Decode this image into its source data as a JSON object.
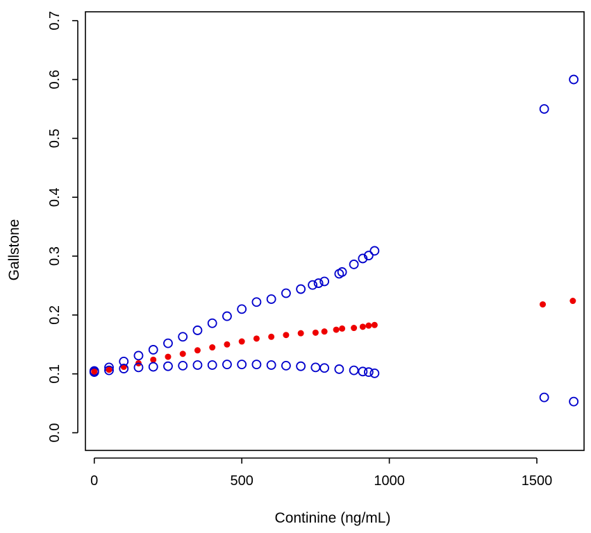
{
  "chart_data": {
    "type": "scatter",
    "xlabel": "Continine (ng/mL)",
    "ylabel": "Gallstone",
    "xlim": [
      -30,
      1660
    ],
    "ylim": [
      -0.03,
      0.715
    ],
    "x_ticks": [
      0,
      500,
      1000,
      1500
    ],
    "x_tick_labels": [
      "0",
      "500",
      "1000",
      "1500"
    ],
    "y_ticks": [
      0.0,
      0.1,
      0.2,
      0.3,
      0.4,
      0.5,
      0.6,
      0.7
    ],
    "y_tick_labels": [
      "0.0",
      "0.1",
      "0.2",
      "0.3",
      "0.4",
      "0.5",
      "0.6",
      "0.7"
    ],
    "grid": false,
    "legend": "none",
    "colors": {
      "estimate": "#ee0000",
      "ci": "#0000cc"
    },
    "series": [
      {
        "role": "upper-ci",
        "marker": "open-circle",
        "x": [
          0,
          50,
          100,
          150,
          200,
          250,
          300,
          350,
          400,
          450,
          500,
          550,
          600,
          650,
          700,
          740,
          760,
          780,
          830,
          840,
          880,
          910,
          930,
          950,
          1525,
          1625
        ],
        "y": [
          0.105,
          0.111,
          0.121,
          0.131,
          0.141,
          0.152,
          0.163,
          0.174,
          0.186,
          0.198,
          0.21,
          0.222,
          0.227,
          0.237,
          0.244,
          0.251,
          0.254,
          0.257,
          0.27,
          0.273,
          0.286,
          0.296,
          0.301,
          0.309,
          0.55,
          0.6
        ]
      },
      {
        "role": "estimate",
        "marker": "filled-circle",
        "x": [
          0,
          50,
          100,
          150,
          200,
          250,
          300,
          350,
          400,
          450,
          500,
          550,
          600,
          650,
          700,
          750,
          780,
          820,
          840,
          880,
          910,
          930,
          950,
          1520,
          1622
        ],
        "y": [
          0.104,
          0.107,
          0.112,
          0.118,
          0.124,
          0.129,
          0.134,
          0.14,
          0.145,
          0.15,
          0.155,
          0.16,
          0.163,
          0.166,
          0.169,
          0.17,
          0.172,
          0.175,
          0.177,
          0.178,
          0.18,
          0.182,
          0.183,
          0.218,
          0.224
        ]
      },
      {
        "role": "lower-ci",
        "marker": "open-circle",
        "x": [
          0,
          50,
          100,
          150,
          200,
          250,
          300,
          350,
          400,
          450,
          500,
          550,
          600,
          650,
          700,
          750,
          780,
          830,
          880,
          910,
          930,
          950,
          1525,
          1625
        ],
        "y": [
          0.103,
          0.106,
          0.109,
          0.111,
          0.112,
          0.113,
          0.114,
          0.115,
          0.115,
          0.116,
          0.116,
          0.116,
          0.115,
          0.114,
          0.113,
          0.111,
          0.11,
          0.108,
          0.106,
          0.104,
          0.103,
          0.101,
          0.06,
          0.053
        ]
      }
    ]
  }
}
